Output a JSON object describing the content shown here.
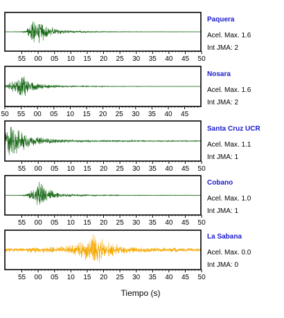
{
  "chart_data": [
    {
      "type": "line",
      "station": "Paquera",
      "accel_label": "Acel. Max. 1.6",
      "jma_label": "Int JMA: 2",
      "color": "#1a6a1a",
      "xticks": [
        "55",
        "00",
        "05",
        "10",
        "15",
        "20",
        "25",
        "30",
        "35",
        "40",
        "45",
        "50"
      ],
      "tick_start": 1,
      "envelope": [
        [
          0,
          0.01
        ],
        [
          3,
          0.015
        ],
        [
          5,
          0.03
        ],
        [
          6,
          0.08
        ],
        [
          7,
          0.35
        ],
        [
          8,
          0.7
        ],
        [
          8.5,
          0.95
        ],
        [
          9.5,
          0.8
        ],
        [
          11,
          0.55
        ],
        [
          13,
          0.35
        ],
        [
          15,
          0.2
        ],
        [
          18,
          0.1
        ],
        [
          22,
          0.06
        ],
        [
          28,
          0.03
        ],
        [
          35,
          0.02
        ],
        [
          47,
          0.015
        ],
        [
          57,
          0.01
        ]
      ]
    },
    {
      "type": "line",
      "station": "Nosara",
      "accel_label": "Acel. Max. 1.6",
      "jma_label": "Int JMA: 2",
      "color": "#1a6a1a",
      "xticks": [
        "50",
        "55",
        "00",
        "05",
        "10",
        "15",
        "20",
        "25",
        "30",
        "35",
        "40",
        "45"
      ],
      "tick_start": 0,
      "envelope": [
        [
          0,
          0.12
        ],
        [
          1,
          0.25
        ],
        [
          2,
          0.3
        ],
        [
          3,
          0.35
        ],
        [
          4,
          0.5
        ],
        [
          5,
          0.6
        ],
        [
          5.5,
          0.75
        ],
        [
          6.5,
          0.5
        ],
        [
          8,
          0.3
        ],
        [
          10,
          0.18
        ],
        [
          13,
          0.1
        ],
        [
          17,
          0.06
        ],
        [
          22,
          0.04
        ],
        [
          30,
          0.02
        ],
        [
          45,
          0.01
        ],
        [
          57,
          0.008
        ]
      ]
    },
    {
      "type": "line",
      "station": "Santa Cruz UCR",
      "accel_label": "Acel. Max. 1.1",
      "jma_label": "Int JMA: 1",
      "color": "#1a6a1a",
      "xticks": [
        "55",
        "00",
        "05",
        "10",
        "15",
        "20",
        "25",
        "30",
        "35",
        "40",
        "45",
        "50"
      ],
      "tick_start": 1,
      "envelope": [
        [
          0,
          0.6
        ],
        [
          0.5,
          0.9
        ],
        [
          1.5,
          0.95
        ],
        [
          3,
          0.8
        ],
        [
          5,
          0.6
        ],
        [
          7,
          0.4
        ],
        [
          9,
          0.28
        ],
        [
          12,
          0.18
        ],
        [
          15,
          0.13
        ],
        [
          20,
          0.09
        ],
        [
          26,
          0.06
        ],
        [
          33,
          0.05
        ],
        [
          42,
          0.04
        ],
        [
          57,
          0.03
        ]
      ]
    },
    {
      "type": "line",
      "station": "Cobano",
      "accel_label": "Acel. Max. 1.0",
      "jma_label": "Int JMA: 1",
      "color": "#1a6a1a",
      "xticks": [
        "55",
        "00",
        "05",
        "10",
        "15",
        "20",
        "25",
        "30",
        "35",
        "40",
        "45",
        "50"
      ],
      "tick_start": 1,
      "envelope": [
        [
          0,
          0.01
        ],
        [
          3,
          0.01
        ],
        [
          5,
          0.02
        ],
        [
          6.5,
          0.1
        ],
        [
          7.5,
          0.3
        ],
        [
          9,
          0.5
        ],
        [
          10,
          0.9
        ],
        [
          11,
          0.6
        ],
        [
          12,
          0.45
        ],
        [
          14,
          0.25
        ],
        [
          16,
          0.12
        ],
        [
          20,
          0.08
        ],
        [
          25,
          0.05
        ],
        [
          30,
          0.03
        ],
        [
          40,
          0.02
        ],
        [
          57,
          0.015
        ]
      ]
    },
    {
      "type": "line",
      "station": "La Sabana",
      "accel_label": "Acel. Max. 0.0",
      "jma_label": "Int JMA: 0",
      "color": "#f5a800",
      "xticks": [
        "55",
        "00",
        "05",
        "10",
        "15",
        "20",
        "25",
        "30",
        "35",
        "40",
        "45",
        "50"
      ],
      "tick_start": 1,
      "envelope": [
        [
          0,
          0.13
        ],
        [
          10,
          0.16
        ],
        [
          15,
          0.2
        ],
        [
          20,
          0.3
        ],
        [
          23,
          0.55
        ],
        [
          25,
          0.85
        ],
        [
          26,
          0.95
        ],
        [
          28,
          0.75
        ],
        [
          30,
          0.55
        ],
        [
          32,
          0.35
        ],
        [
          35,
          0.2
        ],
        [
          40,
          0.16
        ],
        [
          50,
          0.13
        ],
        [
          57,
          0.12
        ]
      ]
    }
  ],
  "xlabel": "Tiempo (s)"
}
